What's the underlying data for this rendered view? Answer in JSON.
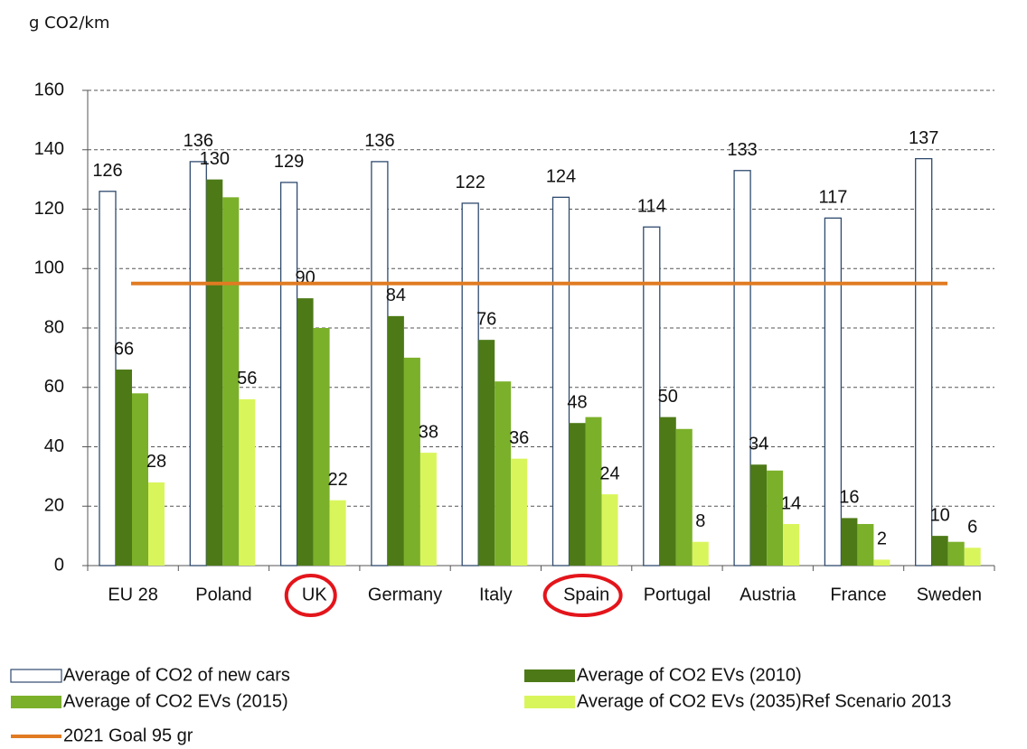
{
  "chart_data": {
    "type": "bar",
    "ylabel": "g CO2/km",
    "categories": [
      "EU 28",
      "Poland",
      "UK",
      "Germany",
      "Italy",
      "Spain",
      "Portugal",
      "Austria",
      "France",
      "Sweden"
    ],
    "series": [
      {
        "name": "Average of CO2 of new cars",
        "color": "#ffffff",
        "stroke": "#2f4a6e",
        "labels": true,
        "values": [
          126,
          136,
          129,
          136,
          122,
          124,
          114,
          133,
          117,
          137
        ]
      },
      {
        "name": "Average of CO2 EVs (2010)",
        "color": "#4d7a17",
        "labels": true,
        "values": [
          66,
          130,
          90,
          84,
          76,
          48,
          50,
          34,
          16,
          10
        ]
      },
      {
        "name": "Average of CO2 EVs (2015)",
        "color": "#7bb02a",
        "labels": false,
        "values": [
          58,
          124,
          80,
          70,
          62,
          50,
          46,
          32,
          14,
          8
        ]
      },
      {
        "name": "Average of CO2 EVs (2035)Ref Scenario 2013",
        "color": "#d9f55c",
        "labels": true,
        "values": [
          28,
          56,
          22,
          38,
          36,
          24,
          8,
          14,
          2,
          6
        ]
      }
    ],
    "reference_line": {
      "name": "2021 Goal 95 gr",
      "value": 95,
      "color": "#e07b22"
    },
    "highlight": [
      2,
      5
    ],
    "highlight_color": "#e3151b",
    "ylim": [
      0,
      160
    ],
    "yticks": [
      0,
      20,
      40,
      60,
      80,
      100,
      120,
      140,
      160
    ],
    "grid": true
  }
}
